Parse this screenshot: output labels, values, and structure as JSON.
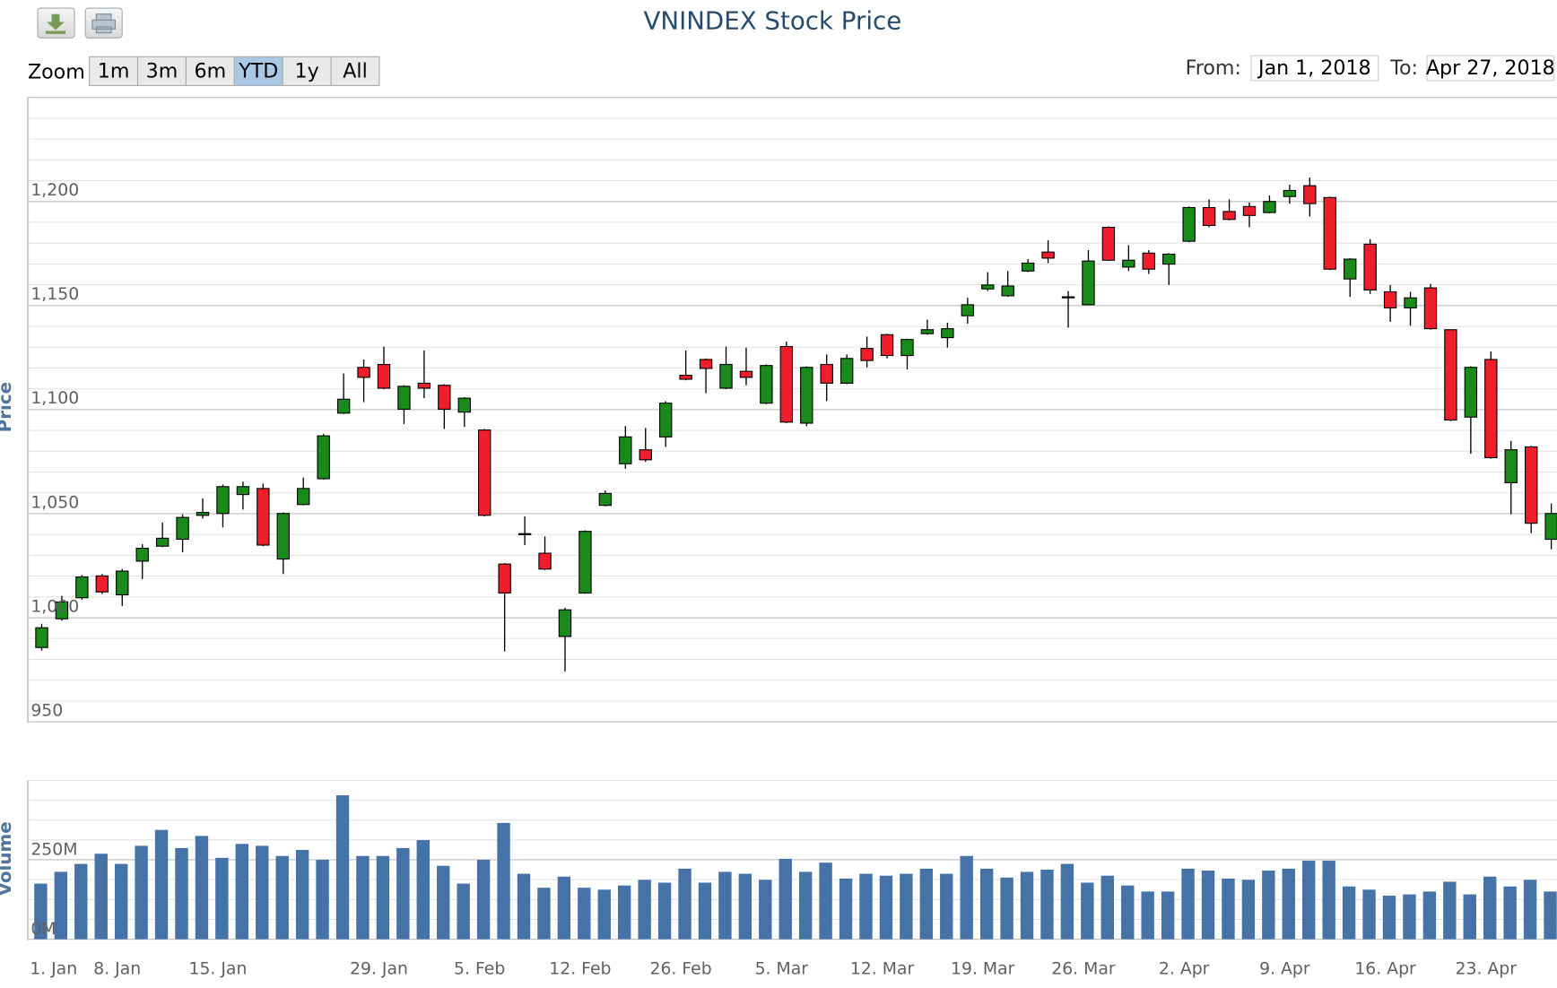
{
  "ui": {
    "zoom": {
      "label": "Zoom",
      "buttons": [
        "1m",
        "3m",
        "6m",
        "YTD",
        "1y",
        "All"
      ],
      "selected": 3
    },
    "range": {
      "from_label": "From:",
      "from": "Jan 1, 2018",
      "to_label": "To:",
      "to": "Apr 27, 2018"
    }
  },
  "chart_data": {
    "type": "candlestick",
    "title": "VNINDEX Stock Price",
    "ylabel": "Price",
    "x": [
      "2018-01-02",
      "2018-01-03",
      "2018-01-04",
      "2018-01-05",
      "2018-01-08",
      "2018-01-09",
      "2018-01-10",
      "2018-01-11",
      "2018-01-12",
      "2018-01-15",
      "2018-01-16",
      "2018-01-17",
      "2018-01-18",
      "2018-01-19",
      "2018-01-24",
      "2018-01-25",
      "2018-01-26",
      "2018-01-29",
      "2018-01-30",
      "2018-01-31",
      "2018-02-01",
      "2018-02-02",
      "2018-02-05",
      "2018-02-06",
      "2018-02-07",
      "2018-02-08",
      "2018-02-09",
      "2018-02-12",
      "2018-02-13",
      "2018-02-14",
      "2018-02-22",
      "2018-02-23",
      "2018-02-26",
      "2018-02-27",
      "2018-02-28",
      "2018-03-01",
      "2018-03-02",
      "2018-03-05",
      "2018-03-06",
      "2018-03-07",
      "2018-03-08",
      "2018-03-09",
      "2018-03-12",
      "2018-03-13",
      "2018-03-14",
      "2018-03-15",
      "2018-03-16",
      "2018-03-19",
      "2018-03-20",
      "2018-03-21",
      "2018-03-22",
      "2018-03-23",
      "2018-03-26",
      "2018-03-27",
      "2018-03-28",
      "2018-03-29",
      "2018-03-30",
      "2018-04-02",
      "2018-04-03",
      "2018-04-04",
      "2018-04-05",
      "2018-04-06",
      "2018-04-09",
      "2018-04-10",
      "2018-04-11",
      "2018-04-12",
      "2018-04-13",
      "2018-04-16",
      "2018-04-17",
      "2018-04-18",
      "2018-04-19",
      "2018-04-20",
      "2018-04-23",
      "2018-04-24",
      "2018-04-25",
      "2018-04-26"
    ],
    "xticks": [
      {
        "value": "2018-01-01",
        "label": "1. Jan"
      },
      {
        "value": "2018-01-08",
        "label": "8. Jan"
      },
      {
        "value": "2018-01-15",
        "label": "15. Jan"
      },
      {
        "value": "2018-01-29",
        "label": "29. Jan"
      },
      {
        "value": "2018-02-05",
        "label": "5. Feb"
      },
      {
        "value": "2018-02-12",
        "label": "12. Feb"
      },
      {
        "value": "2018-02-26",
        "label": "26. Feb"
      },
      {
        "value": "2018-03-05",
        "label": "5. Mar"
      },
      {
        "value": "2018-03-12",
        "label": "12. Mar"
      },
      {
        "value": "2018-03-19",
        "label": "19. Mar"
      },
      {
        "value": "2018-03-26",
        "label": "26. Mar"
      },
      {
        "value": "2018-04-02",
        "label": "2. Apr"
      },
      {
        "value": "2018-04-09",
        "label": "9. Apr"
      },
      {
        "value": "2018-04-16",
        "label": "16. Apr"
      },
      {
        "value": "2018-04-23",
        "label": "23. Apr"
      }
    ],
    "open": [
      985.7,
      999.5,
      1009.6,
      1020.1,
      1011.0,
      1027.2,
      1034.4,
      1037.7,
      1049.2,
      1050.1,
      1059.2,
      1062.1,
      1028.2,
      1054.4,
      1066.8,
      1098.3,
      1120.3,
      1121.7,
      1100.2,
      1112.7,
      1111.7,
      1098.8,
      1090.2,
      1025.8,
      1040.4,
      1031.0,
      991.0,
      1011.9,
      1054.0,
      1074.0,
      1080.7,
      1086.9,
      1116.5,
      1124.1,
      1110.3,
      1118.4,
      1103.1,
      1130.3,
      1093.5,
      1121.7,
      1112.7,
      1129.4,
      1136.0,
      1126.0,
      1136.5,
      1134.6,
      1145.1,
      1158.0,
      1154.7,
      1166.6,
      1175.7,
      1154.2,
      1150.4,
      1187.6,
      1168.5,
      1175.2,
      1169.9,
      1180.9,
      1197.1,
      1195.2,
      1197.6,
      1194.7,
      1202.4,
      1207.6,
      1201.9,
      1162.8,
      1179.5,
      1156.6,
      1148.9,
      1158.5,
      1138.4,
      1096.4,
      1124.1,
      1064.9,
      1082.1,
      1037.7
    ],
    "high": [
      997.1,
      1010.5,
      1020.5,
      1021.0,
      1023.4,
      1035.3,
      1045.8,
      1049.7,
      1057.3,
      1064.0,
      1065.4,
      1064.5,
      1050.6,
      1067.3,
      1088.3,
      1117.4,
      1124.1,
      1130.3,
      1111.7,
      1128.4,
      1112.2,
      1106.0,
      1090.7,
      1026.3,
      1048.7,
      1039.1,
      1004.8,
      1042.0,
      1061.1,
      1092.1,
      1091.2,
      1104.1,
      1128.4,
      1124.6,
      1130.3,
      1129.8,
      1121.7,
      1132.7,
      1120.8,
      1126.5,
      1126.5,
      1135.1,
      1136.5,
      1134.1,
      1143.2,
      1141.8,
      1153.7,
      1166.1,
      1166.6,
      1172.3,
      1181.4,
      1157.0,
      1176.6,
      1188.1,
      1179.0,
      1176.6,
      1175.2,
      1197.6,
      1201.0,
      1201.0,
      1199.5,
      1202.9,
      1208.1,
      1211.5,
      1202.4,
      1172.8,
      1181.9,
      1159.9,
      1156.6,
      1160.4,
      1138.4,
      1120.8,
      1127.9,
      1085.0,
      1082.6,
      1054.9
    ],
    "low": [
      984.2,
      998.6,
      1008.6,
      1011.5,
      1005.7,
      1018.6,
      1033.9,
      1031.5,
      1047.7,
      1043.4,
      1052.0,
      1034.4,
      1021.0,
      1054.0,
      1066.4,
      1097.9,
      1103.6,
      1109.8,
      1093.1,
      1105.5,
      1090.7,
      1091.7,
      1048.7,
      983.8,
      1034.9,
      1022.9,
      974.2,
      1011.5,
      1053.5,
      1071.6,
      1074.9,
      1082.1,
      1114.1,
      1107.9,
      1109.8,
      1111.7,
      1102.6,
      1093.5,
      1092.1,
      1104.1,
      1112.2,
      1120.3,
      1124.6,
      1119.3,
      1136.0,
      1129.8,
      1141.3,
      1157.0,
      1154.2,
      1166.1,
      1170.4,
      1139.4,
      1150.4,
      1171.4,
      1166.6,
      1165.2,
      1159.9,
      1180.4,
      1187.6,
      1190.9,
      1187.6,
      1194.3,
      1199.0,
      1192.8,
      1167.1,
      1154.2,
      1155.6,
      1142.2,
      1140.3,
      1138.4,
      1094.5,
      1078.8,
      1076.4,
      1049.7,
      1040.6,
      1032.9
    ],
    "close": [
      995.2,
      1007.6,
      1019.6,
      1012.4,
      1022.4,
      1033.4,
      1038.2,
      1048.2,
      1050.6,
      1063.0,
      1063.0,
      1034.9,
      1050.1,
      1062.1,
      1087.4,
      1105.0,
      1115.5,
      1110.3,
      1111.2,
      1110.3,
      1100.2,
      1105.5,
      1049.2,
      1011.9,
      1040.4,
      1023.4,
      1003.8,
      1041.5,
      1059.7,
      1086.9,
      1075.9,
      1103.1,
      1114.6,
      1119.8,
      1121.7,
      1115.5,
      1121.2,
      1094.0,
      1120.3,
      1112.7,
      1124.6,
      1123.6,
      1126.0,
      1133.7,
      1138.4,
      1138.9,
      1150.4,
      1159.9,
      1159.4,
      1170.4,
      1172.8,
      1154.2,
      1171.4,
      1171.8,
      1171.8,
      1167.5,
      1174.7,
      1197.1,
      1188.5,
      1191.4,
      1193.3,
      1200.0,
      1205.3,
      1199.0,
      1167.5,
      1172.3,
      1157.5,
      1148.9,
      1153.7,
      1138.9,
      1095.0,
      1120.3,
      1076.9,
      1080.7,
      1045.4,
      1050.1
    ],
    "up_color": "#1a8a1a",
    "down_color": "#ee1f2a",
    "doji_color": "#000000",
    "ylim": [
      950,
      1250
    ],
    "yticks": [
      950,
      {
        "value": 1000,
        "label": "1,000"
      },
      {
        "value": 1050,
        "label": "1,050"
      },
      {
        "value": 1100,
        "label": "1,100"
      },
      {
        "value": 1150,
        "label": "1,150"
      },
      {
        "value": 1200,
        "label": "1,200"
      }
    ],
    "minor_grid_step": 10,
    "grid": true,
    "volume_axis": {
      "label": "Volume",
      "ylim": [
        0,
        500
      ],
      "yticks": [
        {
          "value": 0,
          "label": "0M"
        },
        {
          "value": 250,
          "label": "250M"
        }
      ],
      "minor_grid_step": 62.5,
      "color": "#4572a7"
    },
    "volume": [
      175,
      212,
      237,
      269,
      237,
      294,
      344,
      287,
      325,
      256,
      300,
      294,
      262,
      281,
      250,
      453,
      262,
      262,
      287,
      312,
      231,
      175,
      250,
      366,
      206,
      162,
      197,
      162,
      156,
      169,
      187,
      178,
      222,
      178,
      212,
      206,
      187,
      253,
      212,
      241,
      191,
      206,
      200,
      206,
      222,
      206,
      262,
      222,
      194,
      212,
      219,
      237,
      178,
      200,
      169,
      150,
      150,
      222,
      216,
      191,
      187,
      216,
      222,
      247,
      247,
      166,
      156,
      137,
      141,
      150,
      181,
      141,
      197,
      166,
      187,
      150
    ]
  }
}
